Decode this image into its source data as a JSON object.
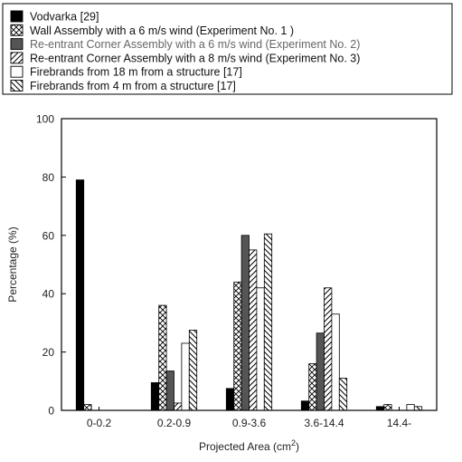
{
  "chart_data": {
    "type": "bar",
    "categories": [
      "0-0.2",
      "0.2-0.9",
      "0.9-3.6",
      "3.6-14.4",
      "14.4-"
    ],
    "ylabel": "Percentage (%)",
    "xlabel": "Projected Area (cm",
    "xlabel_sup": "2",
    "xlabel_close": ")",
    "ylim": [
      0,
      100
    ],
    "yticks": [
      0,
      20,
      40,
      60,
      80,
      100
    ],
    "grid": false,
    "legend_position": "top",
    "series": [
      {
        "name": "Vodvarka [29]",
        "pattern": "solid-black",
        "values": [
          79,
          9.5,
          7.5,
          3.2,
          1.3
        ]
      },
      {
        "name": "Wall Assembly with a 6 m/s wind (Experiment No. 1 )",
        "pattern": "crosshatch",
        "values": [
          2,
          36,
          44,
          16,
          2
        ]
      },
      {
        "name": "Re-entrant Corner Assembly with a 6 m/s wind (Experiment No. 2)",
        "pattern": "solid-gray",
        "values": [
          0,
          13.5,
          60,
          26.5,
          0
        ]
      },
      {
        "name": "Re-entrant Corner Assembly with a 8 m/s wind (Experiment No. 3)",
        "pattern": "diag-forward",
        "values": [
          0,
          2.5,
          55,
          42,
          0
        ]
      },
      {
        "name": "Firebrands from 18 m from a structure [17]",
        "pattern": "white",
        "values": [
          0,
          23,
          42,
          33,
          2
        ]
      },
      {
        "name": "Firebrands from 4 m from a structure [17]",
        "pattern": "diag-back",
        "values": [
          0,
          27.5,
          60.5,
          11,
          1.3
        ]
      }
    ]
  }
}
